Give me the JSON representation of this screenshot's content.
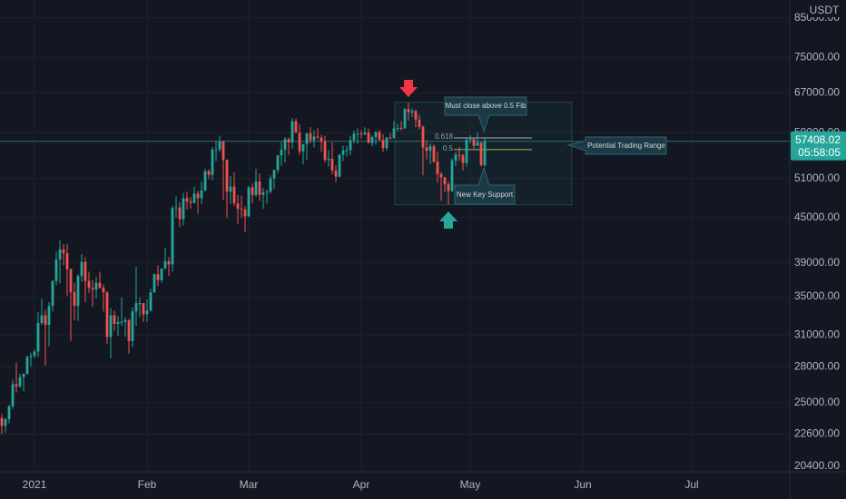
{
  "chart_data": {
    "type": "candlestick",
    "currency": "USDT",
    "countdown": "05:58:05",
    "current_price": 57408.02,
    "log_scale": true,
    "grid": true,
    "up_color": "#26a69a",
    "down_color": "#ef5350",
    "xlim": [
      -9.5,
      208
    ],
    "xticks": [
      {
        "value": 0,
        "label": "2021"
      },
      {
        "value": 31,
        "label": "Feb"
      },
      {
        "value": 59,
        "label": "Mar"
      },
      {
        "value": 90,
        "label": "Apr"
      },
      {
        "value": 120,
        "label": "May"
      },
      {
        "value": 151,
        "label": "Jun"
      },
      {
        "value": 181,
        "label": "Jul"
      }
    ],
    "ylim": [
      20050,
      90000
    ],
    "yticks": [
      {
        "value": 20400,
        "label": "20400.00"
      },
      {
        "value": 22600,
        "label": "22600.00"
      },
      {
        "value": 25000,
        "label": "25000.00"
      },
      {
        "value": 28000,
        "label": "28000.00"
      },
      {
        "value": 31000,
        "label": "31000.00"
      },
      {
        "value": 35000,
        "label": "35000.00"
      },
      {
        "value": 39000,
        "label": "39000.00"
      },
      {
        "value": 45000,
        "label": "45000.00"
      },
      {
        "value": 51000,
        "label": "51000.00"
      },
      {
        "value": 59000,
        "label": "59000.00"
      },
      {
        "value": 67000,
        "label": "67000.00"
      },
      {
        "value": 75000,
        "label": "75000.00"
      },
      {
        "value": 85000,
        "label": "85000.00"
      }
    ],
    "annotations": {
      "top_callout": "Must close above 0.5 Fib",
      "bottom_callout": "New Key Support",
      "range_callout": "Potential Trading Range"
    },
    "zone": {
      "x": [
        99.25,
        148
      ],
      "y": [
        46900,
        65000
      ]
    },
    "fib_levels": [
      {
        "label": "0.618",
        "price": 58024
      },
      {
        "label": "0.5",
        "price": 55900
      }
    ],
    "fib_x": [
      115.5,
      137
    ],
    "x": [
      -9,
      -8,
      -7,
      -6,
      -5,
      -4,
      -3,
      -2,
      -1,
      0,
      1,
      2,
      3,
      4,
      5,
      6,
      7,
      8,
      9,
      10,
      11,
      12,
      13,
      14,
      15,
      16,
      17,
      18,
      19,
      20,
      21,
      22,
      23,
      24,
      25,
      26,
      27,
      28,
      29,
      30,
      31,
      32,
      33,
      34,
      35,
      36,
      37,
      38,
      39,
      40,
      41,
      42,
      43,
      44,
      45,
      46,
      47,
      48,
      49,
      50,
      51,
      52,
      53,
      54,
      55,
      56,
      57,
      58,
      59,
      60,
      61,
      62,
      63,
      64,
      65,
      66,
      67,
      68,
      69,
      70,
      71,
      72,
      73,
      74,
      75,
      76,
      77,
      78,
      79,
      80,
      81,
      82,
      83,
      84,
      85,
      86,
      87,
      88,
      89,
      90,
      91,
      92,
      93,
      94,
      95,
      96,
      97,
      98,
      99,
      100,
      101,
      102,
      103,
      104,
      105,
      106,
      107,
      108,
      109,
      110,
      111,
      112,
      113,
      114,
      115,
      116,
      117,
      118,
      119,
      120,
      121,
      122,
      123,
      124
    ],
    "ohlc": [
      [
        23800,
        24100,
        22600,
        23200
      ],
      [
        23200,
        23800,
        22700,
        23700
      ],
      [
        23700,
        24800,
        23400,
        24700
      ],
      [
        24700,
        26900,
        24500,
        26500
      ],
      [
        26500,
        28400,
        25800,
        26300
      ],
      [
        26300,
        27400,
        26200,
        27100
      ],
      [
        27100,
        27400,
        25900,
        27400
      ],
      [
        27400,
        29000,
        27300,
        28900
      ],
      [
        28900,
        29300,
        28000,
        29000
      ],
      [
        29000,
        29600,
        28800,
        29400
      ],
      [
        29400,
        33300,
        28900,
        32200
      ],
      [
        32200,
        34800,
        32000,
        33000
      ],
      [
        33000,
        33600,
        28100,
        32000
      ],
      [
        32000,
        34400,
        29900,
        34000
      ],
      [
        34000,
        36900,
        33400,
        36800
      ],
      [
        36800,
        40400,
        36300,
        39400
      ],
      [
        39400,
        41900,
        36500,
        40700
      ],
      [
        40700,
        41400,
        38700,
        40200
      ],
      [
        40200,
        41400,
        35100,
        38200
      ],
      [
        38200,
        38300,
        30400,
        35500
      ],
      [
        35500,
        36600,
        32500,
        34000
      ],
      [
        34000,
        37600,
        32400,
        37400
      ],
      [
        37400,
        40100,
        36700,
        39100
      ],
      [
        39100,
        39700,
        34400,
        36800
      ],
      [
        36800,
        37900,
        35400,
        36000
      ],
      [
        36000,
        36900,
        33900,
        35800
      ],
      [
        35800,
        37300,
        34800,
        36600
      ],
      [
        36600,
        37900,
        35900,
        36000
      ],
      [
        36000,
        36400,
        33400,
        35500
      ],
      [
        35500,
        35600,
        30100,
        30800
      ],
      [
        30800,
        33800,
        28800,
        33000
      ],
      [
        33000,
        33500,
        31400,
        32100
      ],
      [
        32100,
        32900,
        30900,
        32300
      ],
      [
        32300,
        34900,
        31900,
        32300
      ],
      [
        32300,
        32800,
        30800,
        32500
      ],
      [
        32500,
        32600,
        29200,
        30400
      ],
      [
        30400,
        33800,
        29800,
        33400
      ],
      [
        33400,
        38500,
        31900,
        34300
      ],
      [
        34300,
        34900,
        32800,
        34300
      ],
      [
        34300,
        34300,
        32300,
        33100
      ],
      [
        33100,
        34700,
        32300,
        33500
      ],
      [
        33500,
        35900,
        33400,
        35500
      ],
      [
        35500,
        37700,
        35400,
        37600
      ],
      [
        37600,
        38700,
        36200,
        36900
      ],
      [
        36900,
        38300,
        36600,
        38300
      ],
      [
        38300,
        40900,
        38200,
        39200
      ],
      [
        39200,
        39700,
        37400,
        38800
      ],
      [
        38800,
        46700,
        37900,
        46400
      ],
      [
        46400,
        48200,
        45000,
        46500
      ],
      [
        46500,
        47300,
        43700,
        44800
      ],
      [
        44800,
        48700,
        43900,
        47900
      ],
      [
        47900,
        48900,
        46200,
        47400
      ],
      [
        47400,
        48100,
        46300,
        47200
      ],
      [
        47200,
        49700,
        47100,
        48600
      ],
      [
        48600,
        49000,
        45600,
        47900
      ],
      [
        47900,
        50500,
        47000,
        49100
      ],
      [
        49100,
        52600,
        48900,
        52200
      ],
      [
        52200,
        52500,
        50900,
        51600
      ],
      [
        51600,
        56400,
        50700,
        55900
      ],
      [
        55900,
        57500,
        53900,
        55900
      ],
      [
        55900,
        58400,
        55500,
        57400
      ],
      [
        57400,
        57500,
        47600,
        54100
      ],
      [
        54100,
        54200,
        45000,
        48900
      ],
      [
        48900,
        51400,
        47000,
        49700
      ],
      [
        49700,
        52000,
        46700,
        47100
      ],
      [
        47100,
        48400,
        44100,
        46300
      ],
      [
        46300,
        48300,
        45000,
        46200
      ],
      [
        46200,
        46700,
        43000,
        45200
      ],
      [
        45200,
        49800,
        45100,
        49600
      ],
      [
        49600,
        50200,
        47100,
        48400
      ],
      [
        48400,
        52600,
        48100,
        50500
      ],
      [
        50500,
        51800,
        47500,
        48400
      ],
      [
        48400,
        49500,
        46300,
        48800
      ],
      [
        48800,
        49200,
        47100,
        48900
      ],
      [
        48900,
        51500,
        48600,
        51000
      ],
      [
        51000,
        52400,
        49300,
        52400
      ],
      [
        52400,
        54900,
        51900,
        54900
      ],
      [
        54900,
        57400,
        53100,
        55900
      ],
      [
        55900,
        58200,
        53700,
        57800
      ],
      [
        57800,
        58100,
        54900,
        57200
      ],
      [
        57200,
        61800,
        56100,
        61200
      ],
      [
        61200,
        61700,
        59000,
        59000
      ],
      [
        59000,
        60600,
        55000,
        55600
      ],
      [
        55600,
        56900,
        53300,
        56900
      ],
      [
        56900,
        58900,
        54100,
        58900
      ],
      [
        58900,
        60100,
        57000,
        57600
      ],
      [
        57600,
        59500,
        56300,
        58300
      ],
      [
        58300,
        59900,
        57800,
        58100
      ],
      [
        58100,
        58600,
        55500,
        57400
      ],
      [
        57400,
        58400,
        53700,
        54100
      ],
      [
        54100,
        55800,
        53000,
        54300
      ],
      [
        54300,
        57200,
        51700,
        52300
      ],
      [
        52300,
        53200,
        50400,
        51300
      ],
      [
        51300,
        55100,
        51200,
        55000
      ],
      [
        55000,
        56600,
        53900,
        55800
      ],
      [
        55800,
        56600,
        54700,
        55800
      ],
      [
        55800,
        58400,
        54900,
        57600
      ],
      [
        57600,
        59400,
        57000,
        58800
      ],
      [
        58800,
        59800,
        56900,
        58800
      ],
      [
        58800,
        59500,
        57900,
        58700
      ],
      [
        58700,
        60000,
        58500,
        59000
      ],
      [
        59000,
        59800,
        57000,
        57100
      ],
      [
        57100,
        58500,
        56500,
        58200
      ],
      [
        58200,
        59300,
        56800,
        59100
      ],
      [
        59100,
        59500,
        57600,
        57600
      ],
      [
        57600,
        58700,
        55500,
        56200
      ],
      [
        56200,
        58200,
        55700,
        58100
      ],
      [
        58100,
        58900,
        57700,
        58000
      ],
      [
        58000,
        61200,
        57900,
        59800
      ],
      [
        59800,
        60700,
        59200,
        59900
      ],
      [
        59900,
        61200,
        59400,
        59800
      ],
      [
        59800,
        63800,
        59800,
        63600
      ],
      [
        63600,
        64900,
        61300,
        62900
      ],
      [
        62900,
        63800,
        62000,
        63200
      ],
      [
        63200,
        63500,
        60000,
        61500
      ],
      [
        61500,
        62500,
        59600,
        60100
      ],
      [
        60100,
        60400,
        51500,
        56300
      ],
      [
        56300,
        57500,
        54200,
        55700
      ],
      [
        55700,
        57000,
        53400,
        56500
      ],
      [
        56500,
        56800,
        53600,
        53800
      ],
      [
        53800,
        55500,
        50300,
        51700
      ],
      [
        51700,
        52100,
        47500,
        51200
      ],
      [
        51200,
        51200,
        48800,
        50100
      ],
      [
        50100,
        50500,
        46900,
        49000
      ],
      [
        49000,
        54400,
        48800,
        54000
      ],
      [
        54000,
        55500,
        53100,
        55000
      ],
      [
        55000,
        56400,
        53900,
        54900
      ],
      [
        54900,
        55200,
        52300,
        53600
      ],
      [
        53600,
        58000,
        53000,
        57700
      ],
      [
        57700,
        58500,
        57000,
        57800
      ],
      [
        57800,
        57900,
        56000,
        56600
      ],
      [
        56600,
        59000,
        56500,
        57200
      ],
      [
        57200,
        57200,
        53000,
        53200
      ],
      [
        53200,
        57900,
        52900,
        57408.02
      ]
    ]
  }
}
